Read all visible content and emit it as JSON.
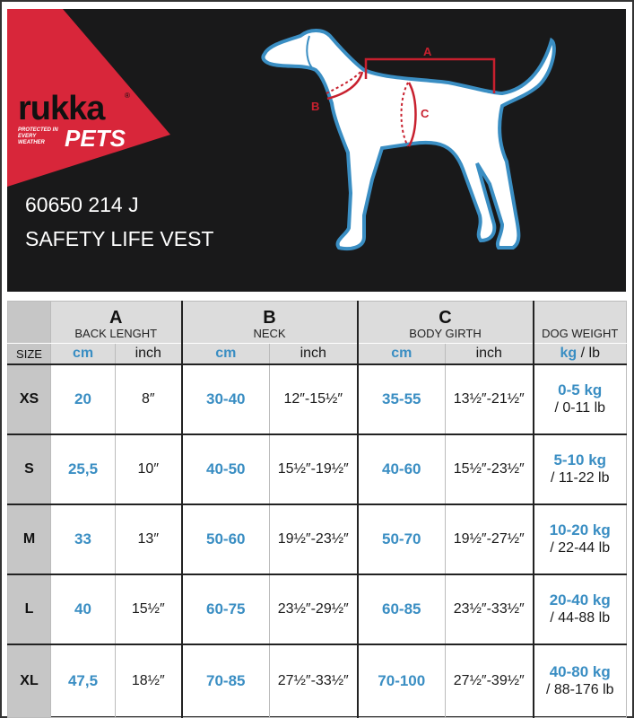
{
  "brand": {
    "name": "rukka",
    "sub": "PETS",
    "tagline": "PROTECTED IN EVERY WEATHER",
    "registered": "®"
  },
  "product": {
    "code": "60650 214 J",
    "name": "SAFETY LIFE VEST"
  },
  "diagram": {
    "labels": [
      "A",
      "B",
      "C"
    ]
  },
  "colors": {
    "accent_blue": "#3a8ec3",
    "brand_red": "#d8263a",
    "background": "#19191a"
  },
  "table": {
    "groups": [
      {
        "letter": "A",
        "label": "BACK LENGHT"
      },
      {
        "letter": "B",
        "label": "NECK"
      },
      {
        "letter": "C",
        "label": "BODY GIRTH"
      },
      {
        "letter": "",
        "label": "DOG WEIGHT"
      }
    ],
    "size_label": "SIZE",
    "units": {
      "cm": "cm",
      "inch": "inch",
      "kg": "kg",
      "lb": " / lb"
    },
    "rows": [
      {
        "size": "XS",
        "a_cm": "20",
        "a_in": "8″",
        "b_cm": "30-40",
        "b_in": "12″-15½″",
        "c_cm": "35-55",
        "c_in": "13½″-21½″",
        "kg": "0-5 kg",
        "lb": "/ 0-11 lb"
      },
      {
        "size": "S",
        "a_cm": "25,5",
        "a_in": "10″",
        "b_cm": "40-50",
        "b_in": "15½″-19½″",
        "c_cm": "40-60",
        "c_in": "15½″-23½″",
        "kg": "5-10 kg",
        "lb": "/ 11-22 lb"
      },
      {
        "size": "M",
        "a_cm": "33",
        "a_in": "13″",
        "b_cm": "50-60",
        "b_in": "19½″-23½″",
        "c_cm": "50-70",
        "c_in": "19½″-27½″",
        "kg": "10-20 kg",
        "lb": "/ 22-44 lb"
      },
      {
        "size": "L",
        "a_cm": "40",
        "a_in": "15½″",
        "b_cm": "60-75",
        "b_in": "23½″-29½″",
        "c_cm": "60-85",
        "c_in": "23½″-33½″",
        "kg": "20-40 kg",
        "lb": "/ 44-88 lb"
      },
      {
        "size": "XL",
        "a_cm": "47,5",
        "a_in": "18½″",
        "b_cm": "70-85",
        "b_in": "27½″-33½″",
        "c_cm": "70-100",
        "c_in": "27½″-39½″",
        "kg": "40-80 kg",
        "lb": "/ 88-176 lb"
      }
    ]
  }
}
